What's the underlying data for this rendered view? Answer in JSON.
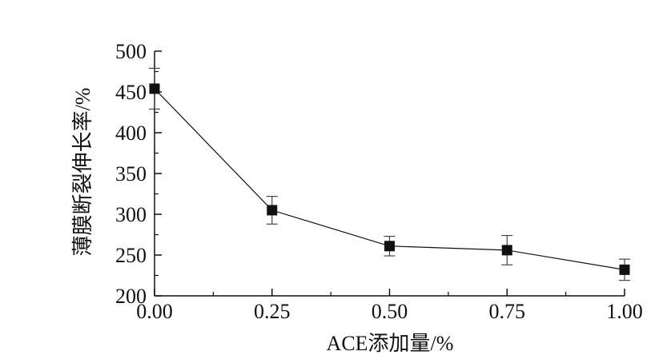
{
  "chart_data": {
    "type": "line",
    "title": "",
    "xlabel": "ACE添加量/%",
    "ylabel": "薄膜断裂伸长率/%",
    "x": [
      0.0,
      0.25,
      0.5,
      0.75,
      1.0
    ],
    "x_ticks": [
      "0.00",
      "0.25",
      "0.50",
      "0.75",
      "1.00"
    ],
    "y_ticks": [
      "200",
      "250",
      "300",
      "350",
      "400",
      "450",
      "500"
    ],
    "xlim": [
      0.0,
      1.0
    ],
    "ylim": [
      200,
      500
    ],
    "grid": false,
    "series": [
      {
        "values": [
          454,
          305,
          261,
          256,
          232
        ],
        "error": [
          25,
          17,
          12,
          18,
          13
        ],
        "marker": "square",
        "color": "#111111"
      }
    ]
  }
}
